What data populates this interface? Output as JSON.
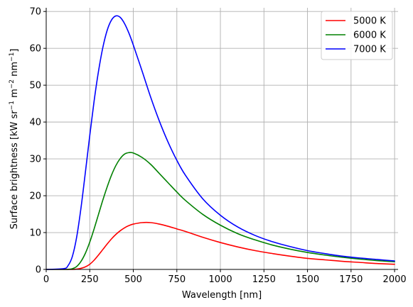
{
  "chart_data": {
    "type": "line",
    "xlabel": "Wavelength [nm]",
    "ylabel_parts": {
      "prefix": "Surface brightness [kW sr",
      "exp1": "−1",
      "mid1": " m",
      "exp2": "−2",
      "mid2": " nm",
      "exp3": "−1",
      "suffix": "]"
    },
    "xlim": [
      0,
      2020
    ],
    "ylim": [
      0,
      71
    ],
    "xticks": [
      0,
      250,
      500,
      750,
      1000,
      1250,
      1500,
      1750,
      2000
    ],
    "yticks": [
      0,
      10,
      20,
      30,
      40,
      50,
      60,
      70
    ],
    "grid": true,
    "legend_position": "top-right",
    "x": [
      0,
      100,
      125,
      150,
      175,
      200,
      225,
      250,
      275,
      300,
      325,
      350,
      375,
      400,
      425,
      450,
      475,
      500,
      550,
      600,
      650,
      700,
      750,
      800,
      900,
      1000,
      1100,
      1200,
      1300,
      1400,
      1500,
      1600,
      1700,
      1800,
      1900,
      2000
    ],
    "series": [
      {
        "name": "5000 K",
        "color": "#ff0000",
        "values": [
          0,
          0,
          0,
          0.01,
          0.08,
          0.3,
          0.7,
          1.4,
          2.5,
          3.9,
          5.4,
          6.9,
          8.3,
          9.5,
          10.5,
          11.3,
          11.9,
          12.3,
          12.7,
          12.7,
          12.3,
          11.7,
          11.0,
          10.3,
          8.7,
          7.3,
          6.1,
          5.1,
          4.3,
          3.6,
          3.0,
          2.6,
          2.2,
          1.9,
          1.6,
          1.4
        ]
      },
      {
        "name": "6000 K",
        "color": "#008000",
        "values": [
          0,
          0,
          0.02,
          0.2,
          0.8,
          2.2,
          4.4,
          7.4,
          11.0,
          14.9,
          18.8,
          22.4,
          25.6,
          28.2,
          30.1,
          31.3,
          31.7,
          31.6,
          30.4,
          28.5,
          26.0,
          23.5,
          21.0,
          18.7,
          14.9,
          12.0,
          9.7,
          8.0,
          6.6,
          5.5,
          4.6,
          3.9,
          3.3,
          2.8,
          2.4,
          2.1
        ]
      },
      {
        "name": "7000 K",
        "color": "#0000ff",
        "values": [
          0,
          0.2,
          1.0,
          3.5,
          8.8,
          16.8,
          26.4,
          36.3,
          45.7,
          53.7,
          60.2,
          64.9,
          67.7,
          68.8,
          68.4,
          66.7,
          64.1,
          60.9,
          53.9,
          46.7,
          40.2,
          34.5,
          29.6,
          25.5,
          19.1,
          14.7,
          11.5,
          9.2,
          7.5,
          6.2,
          5.1,
          4.3,
          3.6,
          3.1,
          2.7,
          2.3
        ]
      }
    ]
  }
}
